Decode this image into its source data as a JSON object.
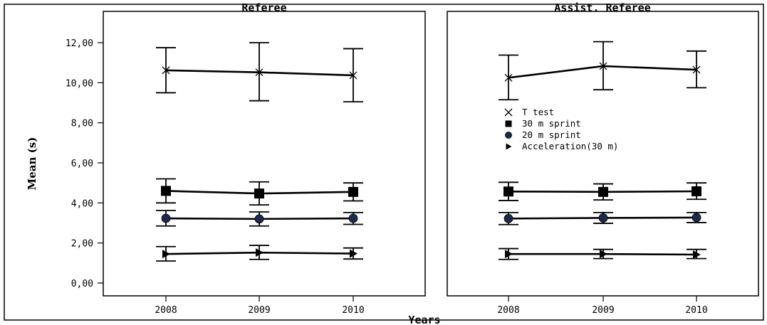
{
  "chart_data": {
    "type": "line",
    "shared": {
      "ylabel": "Mean (s)",
      "xlabel": "Years",
      "ylim": [
        0,
        12
      ],
      "yticks": [
        0,
        2,
        4,
        6,
        8,
        10,
        12
      ],
      "ytick_labels": [
        "0,00",
        "2,00",
        "4,00",
        "6,00",
        "8,00",
        "10,00",
        "12,00"
      ],
      "categories": [
        "2008",
        "2009",
        "2010"
      ],
      "grid": false,
      "error_bars": true
    },
    "legend": {
      "placement": "inside right panel, middle",
      "entries": [
        {
          "label": "T test",
          "marker": "x"
        },
        {
          "label": "30 m sprint",
          "marker": "square"
        },
        {
          "label": "20 m sprint",
          "marker": "circle"
        },
        {
          "label": "Acceleration(30 m)",
          "marker": "triangle-right"
        }
      ]
    },
    "panels": [
      {
        "title": "Referee",
        "series": [
          {
            "name": "T test",
            "marker": "x",
            "values": [
              10.62,
              10.52,
              10.37
            ],
            "error_low": [
              9.5,
              9.1,
              9.05
            ],
            "error_high": [
              11.75,
              12.0,
              11.7
            ]
          },
          {
            "name": "30 m sprint",
            "marker": "square",
            "values": [
              4.6,
              4.47,
              4.55
            ],
            "error_low": [
              4.0,
              3.9,
              4.1
            ],
            "error_high": [
              5.2,
              5.05,
              5.0
            ]
          },
          {
            "name": "20 m sprint",
            "marker": "circle",
            "values": [
              3.23,
              3.2,
              3.23
            ],
            "error_low": [
              2.85,
              2.85,
              2.93
            ],
            "error_high": [
              3.62,
              3.55,
              3.52
            ]
          },
          {
            "name": "Acceleration(30 m)",
            "marker": "triangle-right",
            "values": [
              1.45,
              1.52,
              1.47
            ],
            "error_low": [
              1.1,
              1.18,
              1.2
            ],
            "error_high": [
              1.82,
              1.88,
              1.75
            ]
          }
        ]
      },
      {
        "title": "Assist. Referee",
        "series": [
          {
            "name": "T test",
            "marker": "x",
            "values": [
              10.25,
              10.83,
              10.65
            ],
            "error_low": [
              9.15,
              9.65,
              9.75
            ],
            "error_high": [
              11.38,
              12.05,
              11.58
            ]
          },
          {
            "name": "30 m sprint",
            "marker": "square",
            "values": [
              4.57,
              4.55,
              4.58
            ],
            "error_low": [
              4.12,
              4.15,
              4.18
            ],
            "error_high": [
              5.03,
              4.95,
              5.0
            ]
          },
          {
            "name": "20 m sprint",
            "marker": "circle",
            "values": [
              3.22,
              3.25,
              3.27
            ],
            "error_low": [
              2.92,
              2.98,
              3.02
            ],
            "error_high": [
              3.52,
              3.52,
              3.52
            ]
          },
          {
            "name": "Acceleration(30 m)",
            "marker": "triangle-right",
            "values": [
              1.45,
              1.45,
              1.42
            ],
            "error_low": [
              1.18,
              1.22,
              1.22
            ],
            "error_high": [
              1.72,
              1.68,
              1.68
            ]
          }
        ]
      }
    ]
  }
}
